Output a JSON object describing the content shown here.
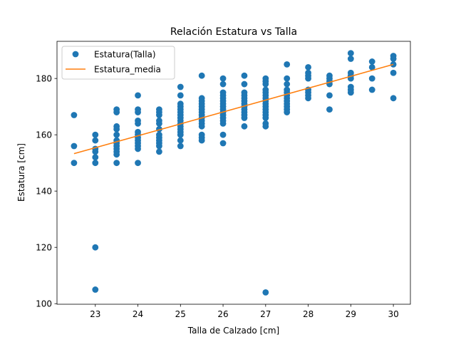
{
  "chart_data": {
    "type": "scatter",
    "title": "Relación Estatura vs Talla",
    "xlabel": "Talla de Calzado [cm]",
    "ylabel": "Estatura [cm]",
    "xlim": [
      22.1,
      30.4
    ],
    "ylim": [
      99.8,
      193.2
    ],
    "xticks": [
      23,
      24,
      25,
      26,
      27,
      28,
      29,
      30
    ],
    "yticks": [
      100,
      120,
      140,
      160,
      180
    ],
    "grid": false,
    "legend_position": "top-left",
    "series": [
      {
        "name": "Estatura(Talla)",
        "kind": "scatter",
        "color": "#1f77b4",
        "points": [
          [
            22.5,
            167
          ],
          [
            22.5,
            156
          ],
          [
            22.5,
            150
          ],
          [
            23,
            160
          ],
          [
            23,
            158
          ],
          [
            23,
            155
          ],
          [
            23,
            154
          ],
          [
            23,
            152
          ],
          [
            23,
            150
          ],
          [
            23,
            120
          ],
          [
            23,
            105
          ],
          [
            23.5,
            169
          ],
          [
            23.5,
            168
          ],
          [
            23.5,
            163
          ],
          [
            23.5,
            162
          ],
          [
            23.5,
            160
          ],
          [
            23.5,
            158
          ],
          [
            23.5,
            157
          ],
          [
            23.5,
            156
          ],
          [
            23.5,
            155
          ],
          [
            23.5,
            154
          ],
          [
            23.5,
            153
          ],
          [
            23.5,
            150
          ],
          [
            24,
            174
          ],
          [
            24,
            169
          ],
          [
            24,
            168
          ],
          [
            24,
            165
          ],
          [
            24,
            164
          ],
          [
            24,
            161
          ],
          [
            24,
            160
          ],
          [
            24,
            159
          ],
          [
            24,
            158
          ],
          [
            24,
            157
          ],
          [
            24,
            156
          ],
          [
            24,
            155
          ],
          [
            24,
            150
          ],
          [
            24.5,
            169
          ],
          [
            24.5,
            168
          ],
          [
            24.5,
            167
          ],
          [
            24.5,
            165
          ],
          [
            24.5,
            164
          ],
          [
            24.5,
            162
          ],
          [
            24.5,
            160
          ],
          [
            24.5,
            159
          ],
          [
            24.5,
            158
          ],
          [
            24.5,
            157
          ],
          [
            24.5,
            156
          ],
          [
            24.5,
            154
          ],
          [
            25,
            177
          ],
          [
            25,
            174
          ],
          [
            25,
            171
          ],
          [
            25,
            170
          ],
          [
            25,
            169
          ],
          [
            25,
            168
          ],
          [
            25,
            167
          ],
          [
            25,
            166
          ],
          [
            25,
            165
          ],
          [
            25,
            164
          ],
          [
            25,
            163
          ],
          [
            25,
            162
          ],
          [
            25,
            161
          ],
          [
            25,
            160
          ],
          [
            25,
            158
          ],
          [
            25,
            156
          ],
          [
            25.5,
            181
          ],
          [
            25.5,
            173
          ],
          [
            25.5,
            172
          ],
          [
            25.5,
            171
          ],
          [
            25.5,
            170
          ],
          [
            25.5,
            169
          ],
          [
            25.5,
            168
          ],
          [
            25.5,
            167
          ],
          [
            25.5,
            166
          ],
          [
            25.5,
            165
          ],
          [
            25.5,
            164
          ],
          [
            25.5,
            163
          ],
          [
            25.5,
            160
          ],
          [
            25.5,
            159
          ],
          [
            25.5,
            158
          ],
          [
            26,
            180
          ],
          [
            26,
            178
          ],
          [
            26,
            175
          ],
          [
            26,
            174
          ],
          [
            26,
            173
          ],
          [
            26,
            172
          ],
          [
            26,
            171
          ],
          [
            26,
            170
          ],
          [
            26,
            169
          ],
          [
            26,
            168
          ],
          [
            26,
            167
          ],
          [
            26,
            166
          ],
          [
            26,
            165
          ],
          [
            26,
            164
          ],
          [
            26,
            160
          ],
          [
            26,
            157
          ],
          [
            26.5,
            181
          ],
          [
            26.5,
            178
          ],
          [
            26.5,
            175
          ],
          [
            26.5,
            174
          ],
          [
            26.5,
            173
          ],
          [
            26.5,
            172
          ],
          [
            26.5,
            171
          ],
          [
            26.5,
            170
          ],
          [
            26.5,
            169
          ],
          [
            26.5,
            168
          ],
          [
            26.5,
            167
          ],
          [
            26.5,
            166
          ],
          [
            26.5,
            163
          ],
          [
            27,
            180
          ],
          [
            27,
            179
          ],
          [
            27,
            178
          ],
          [
            27,
            176
          ],
          [
            27,
            175
          ],
          [
            27,
            174
          ],
          [
            27,
            173
          ],
          [
            27,
            172
          ],
          [
            27,
            171
          ],
          [
            27,
            170
          ],
          [
            27,
            169
          ],
          [
            27,
            168
          ],
          [
            27,
            167
          ],
          [
            27,
            166
          ],
          [
            27,
            164
          ],
          [
            27,
            163
          ],
          [
            27,
            104
          ],
          [
            27.5,
            185
          ],
          [
            27.5,
            180
          ],
          [
            27.5,
            178
          ],
          [
            27.5,
            176
          ],
          [
            27.5,
            175
          ],
          [
            27.5,
            174
          ],
          [
            27.5,
            173
          ],
          [
            27.5,
            172
          ],
          [
            27.5,
            171
          ],
          [
            27.5,
            170
          ],
          [
            27.5,
            169
          ],
          [
            27.5,
            168
          ],
          [
            28,
            184
          ],
          [
            28,
            182
          ],
          [
            28,
            181
          ],
          [
            28,
            180
          ],
          [
            28,
            176
          ],
          [
            28,
            175
          ],
          [
            28,
            174
          ],
          [
            28,
            173
          ],
          [
            28.5,
            181
          ],
          [
            28.5,
            180
          ],
          [
            28.5,
            179
          ],
          [
            28.5,
            178
          ],
          [
            28.5,
            174
          ],
          [
            28.5,
            169
          ],
          [
            29,
            189
          ],
          [
            29,
            187
          ],
          [
            29,
            182
          ],
          [
            29,
            181
          ],
          [
            29,
            180
          ],
          [
            29,
            177
          ],
          [
            29,
            176
          ],
          [
            29,
            175
          ],
          [
            29.5,
            186
          ],
          [
            29.5,
            184
          ],
          [
            29.5,
            180
          ],
          [
            29.5,
            176
          ],
          [
            30,
            188
          ],
          [
            30,
            187
          ],
          [
            30,
            185
          ],
          [
            30,
            182
          ],
          [
            30,
            173
          ]
        ]
      },
      {
        "name": "Estatura_media",
        "kind": "line",
        "color": "#ff7f0e",
        "x": [
          22.5,
          30
        ],
        "values": [
          153.3,
          185
        ]
      }
    ]
  }
}
